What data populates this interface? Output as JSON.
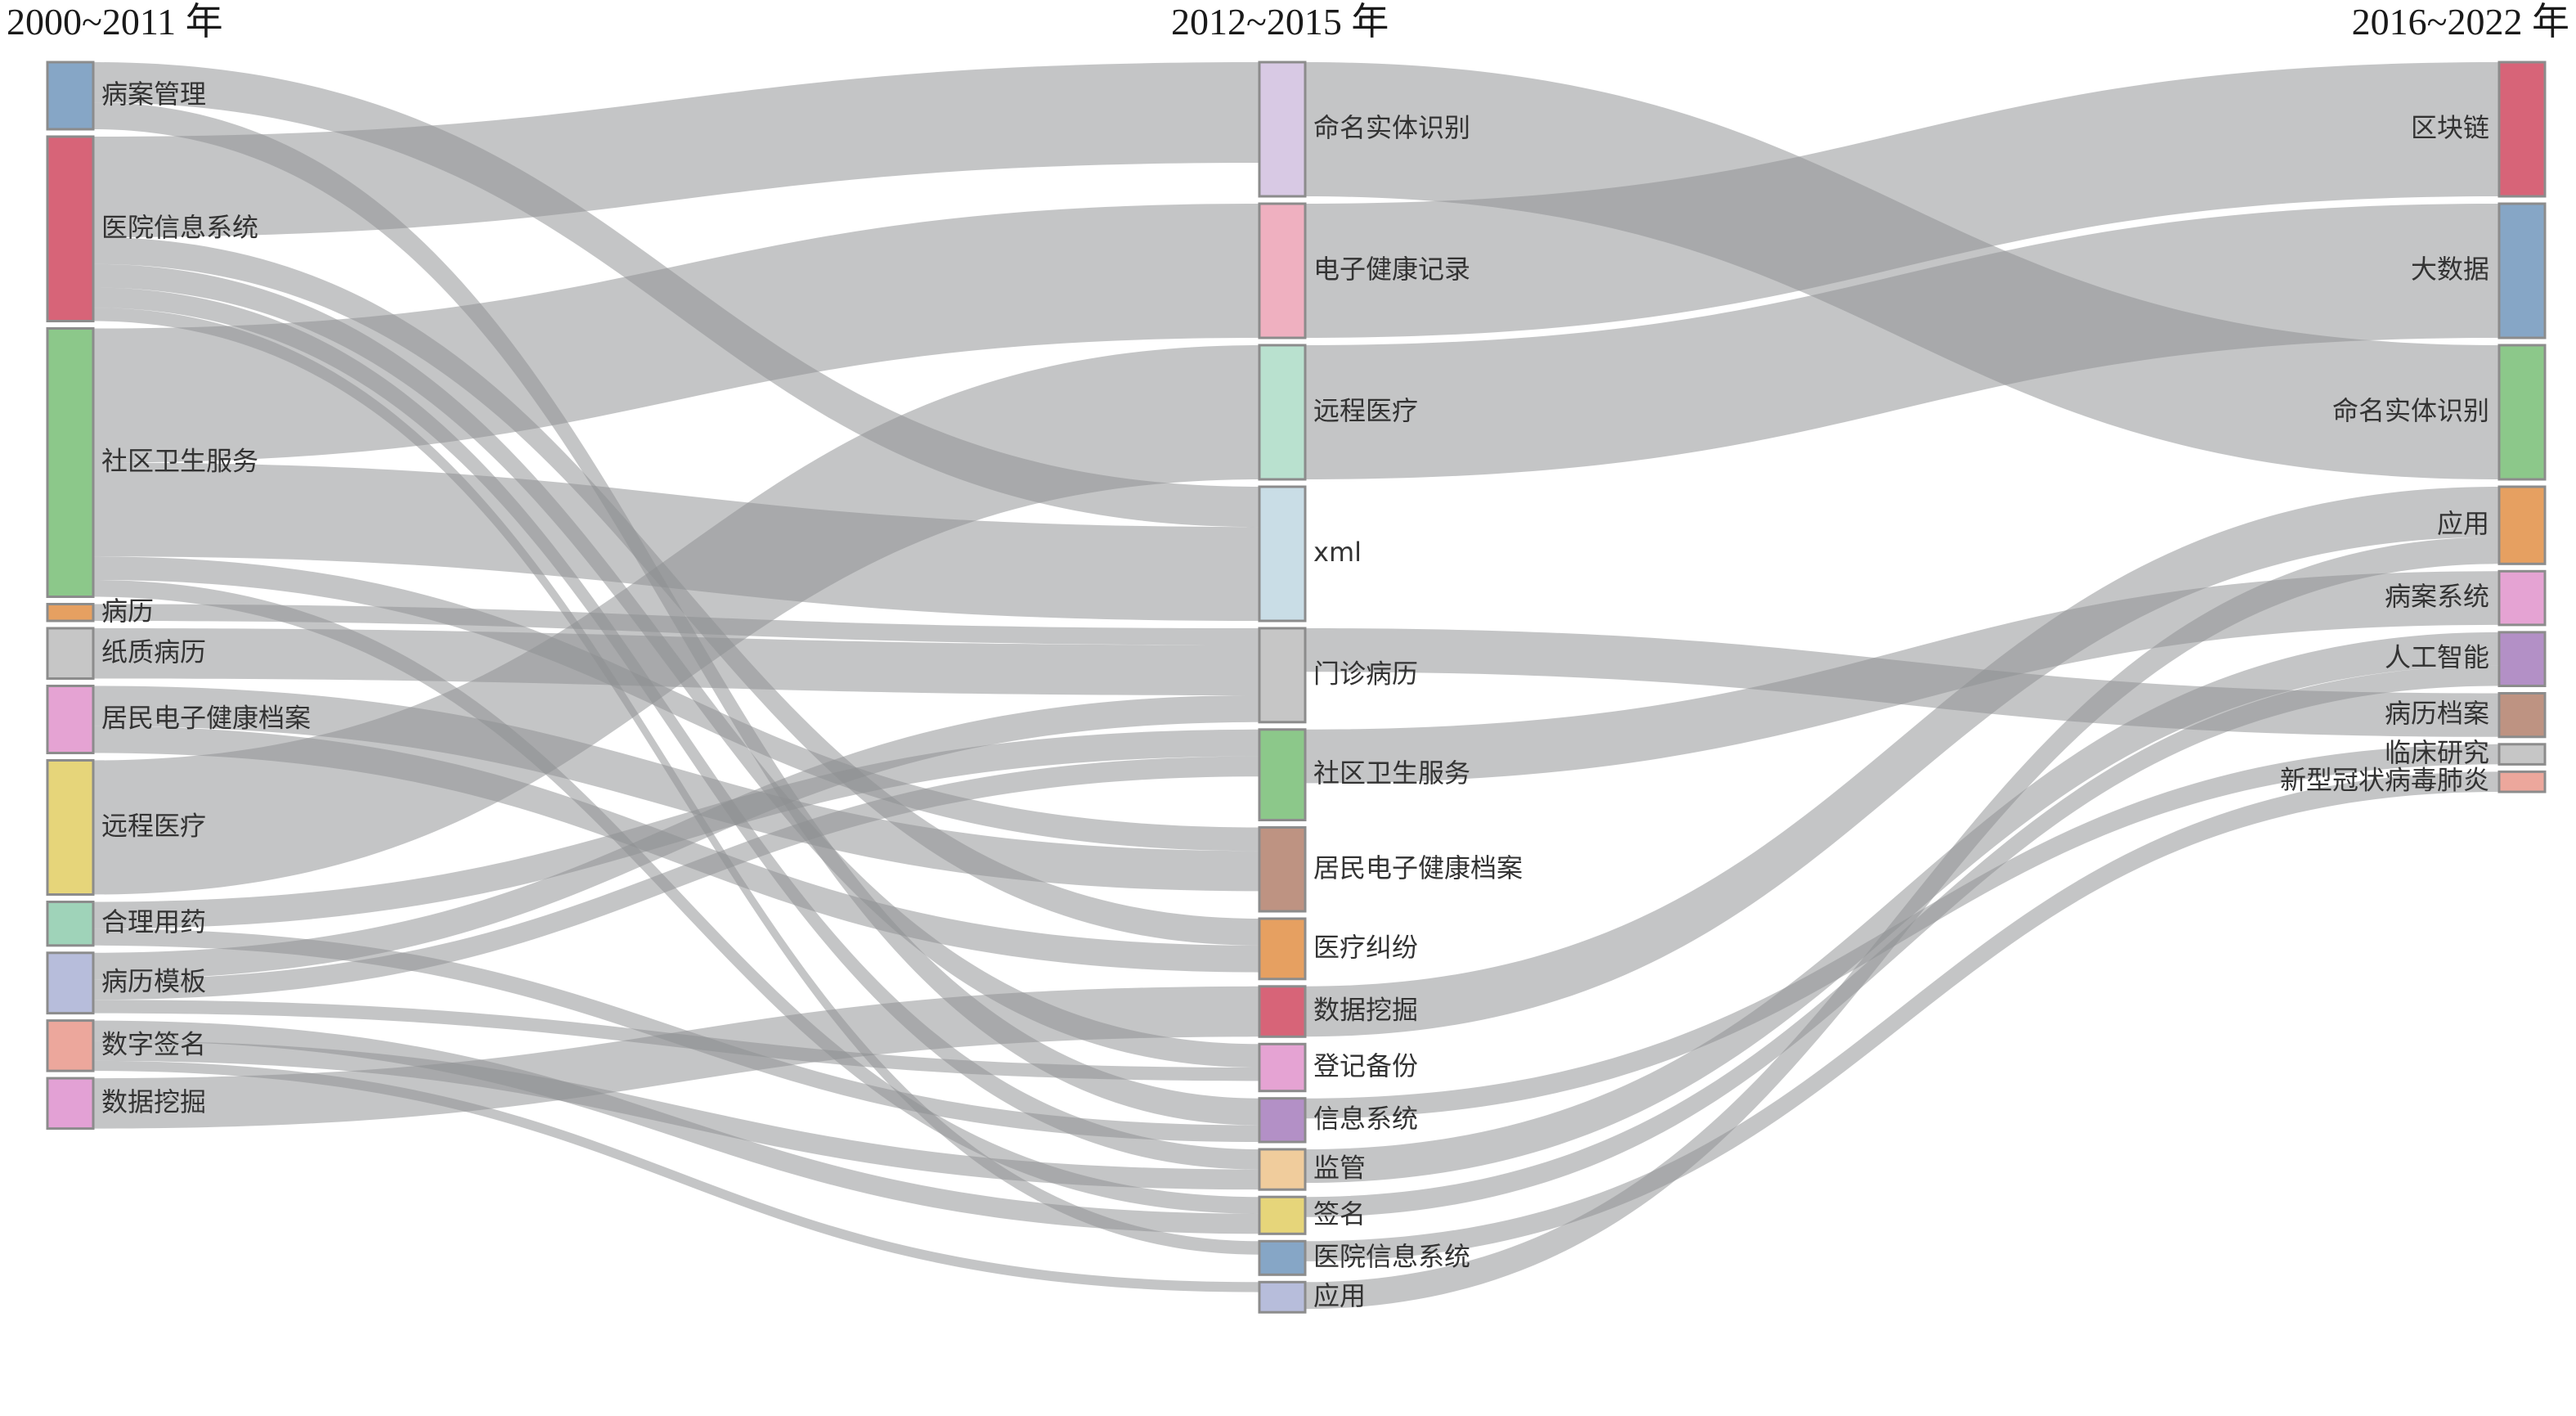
{
  "columns": [
    {
      "title": "2000~2011 年"
    },
    {
      "title": "2012~2015 年"
    },
    {
      "title": "2016~2022 年"
    }
  ],
  "chart_data": {
    "type": "sankey",
    "nodes": [
      {
        "id": "A1",
        "col": 0,
        "label": "病案管理",
        "value": 20,
        "color": "#86a6c6"
      },
      {
        "id": "A2",
        "col": 0,
        "label": "医院信息系统",
        "value": 55,
        "color": "#d76478"
      },
      {
        "id": "A3",
        "col": 0,
        "label": "社区卫生服务",
        "value": 80,
        "color": "#8cc88a"
      },
      {
        "id": "A4",
        "col": 0,
        "label": "病历",
        "value": 5,
        "color": "#e6a061"
      },
      {
        "id": "A5",
        "col": 0,
        "label": "纸质病历",
        "value": 15,
        "color": "#c6c6c6"
      },
      {
        "id": "A6",
        "col": 0,
        "label": "居民电子健康档案",
        "value": 20,
        "color": "#e5a3d3"
      },
      {
        "id": "A7",
        "col": 0,
        "label": "远程医疗",
        "value": 40,
        "color": "#e6d57a"
      },
      {
        "id": "A8",
        "col": 0,
        "label": "合理用药",
        "value": 13,
        "color": "#9fd3b9"
      },
      {
        "id": "A9",
        "col": 0,
        "label": "病历模板",
        "value": 18,
        "color": "#b7bddb"
      },
      {
        "id": "A10",
        "col": 0,
        "label": "数字签名",
        "value": 15,
        "color": "#eca79c"
      },
      {
        "id": "A11",
        "col": 0,
        "label": "数据挖掘",
        "value": 15,
        "color": "#e3a1d5"
      },
      {
        "id": "B1",
        "col": 1,
        "label": "命名实体识别",
        "value": 40,
        "color": "#d8c9e4"
      },
      {
        "id": "B2",
        "col": 1,
        "label": "电子健康记录",
        "value": 40,
        "color": "#efb0c0"
      },
      {
        "id": "B3",
        "col": 1,
        "label": "远程医疗",
        "value": 40,
        "color": "#b9e1cf"
      },
      {
        "id": "B4",
        "col": 1,
        "label": "xml",
        "value": 40,
        "color": "#c9dde6"
      },
      {
        "id": "B5",
        "col": 1,
        "label": "门诊病历",
        "value": 28,
        "color": "#c6c6c6"
      },
      {
        "id": "B6",
        "col": 1,
        "label": "社区卫生服务",
        "value": 27,
        "color": "#8cc88a"
      },
      {
        "id": "B7",
        "col": 1,
        "label": "居民电子健康档案",
        "value": 25,
        "color": "#be9382"
      },
      {
        "id": "B8",
        "col": 1,
        "label": "医疗纠纷",
        "value": 18,
        "color": "#e6a061"
      },
      {
        "id": "B9",
        "col": 1,
        "label": "数据挖掘",
        "value": 15,
        "color": "#d76478"
      },
      {
        "id": "B10",
        "col": 1,
        "label": "登记备份",
        "value": 14,
        "color": "#e5a3d3"
      },
      {
        "id": "B11",
        "col": 1,
        "label": "信息系统",
        "value": 13,
        "color": "#b390c6"
      },
      {
        "id": "B12",
        "col": 1,
        "label": "监管",
        "value": 12,
        "color": "#f0cc9c"
      },
      {
        "id": "B13",
        "col": 1,
        "label": "签名",
        "value": 11,
        "color": "#e6d57a"
      },
      {
        "id": "B14",
        "col": 1,
        "label": "医院信息系统",
        "value": 10,
        "color": "#86a6c6"
      },
      {
        "id": "B15",
        "col": 1,
        "label": "应用",
        "value": 9,
        "color": "#b7bddb"
      },
      {
        "id": "C1",
        "col": 2,
        "label": "区块链",
        "value": 40,
        "color": "#d76478"
      },
      {
        "id": "C2",
        "col": 2,
        "label": "大数据",
        "value": 40,
        "color": "#86a6c6"
      },
      {
        "id": "C3",
        "col": 2,
        "label": "命名实体识别",
        "value": 40,
        "color": "#8cc88a"
      },
      {
        "id": "C4",
        "col": 2,
        "label": "应用",
        "value": 23,
        "color": "#e6a061"
      },
      {
        "id": "C5",
        "col": 2,
        "label": "病案系统",
        "value": 16,
        "color": "#e5a3d3"
      },
      {
        "id": "C6",
        "col": 2,
        "label": "人工智能",
        "value": 16,
        "color": "#b390c6"
      },
      {
        "id": "C7",
        "col": 2,
        "label": "病历档案",
        "value": 13,
        "color": "#be9382"
      },
      {
        "id": "C8",
        "col": 2,
        "label": "临床研究",
        "value": 6,
        "color": "#c6c6c6"
      },
      {
        "id": "C9",
        "col": 2,
        "label": "新型冠状病毒肺炎",
        "value": 6,
        "color": "#eca79c"
      }
    ],
    "links": [
      {
        "source": "A1",
        "target": "B4",
        "value": 12
      },
      {
        "source": "A1",
        "target": "B11",
        "value": 8
      },
      {
        "source": "A2",
        "target": "B1",
        "value": 30
      },
      {
        "source": "A2",
        "target": "B8",
        "value": 8
      },
      {
        "source": "A2",
        "target": "B10",
        "value": 7
      },
      {
        "source": "A2",
        "target": "B12",
        "value": 6
      },
      {
        "source": "A2",
        "target": "B14",
        "value": 4
      },
      {
        "source": "A3",
        "target": "B2",
        "value": 40
      },
      {
        "source": "A3",
        "target": "B4",
        "value": 28
      },
      {
        "source": "A3",
        "target": "B7",
        "value": 7
      },
      {
        "source": "A3",
        "target": "B13",
        "value": 5
      },
      {
        "source": "A4",
        "target": "B5",
        "value": 5
      },
      {
        "source": "A5",
        "target": "B5",
        "value": 15
      },
      {
        "source": "A6",
        "target": "B7",
        "value": 12
      },
      {
        "source": "A6",
        "target": "B8",
        "value": 8
      },
      {
        "source": "A7",
        "target": "B3",
        "value": 40
      },
      {
        "source": "A8",
        "target": "B6",
        "value": 8
      },
      {
        "source": "A8",
        "target": "B11",
        "value": 5
      },
      {
        "source": "A9",
        "target": "B5",
        "value": 8
      },
      {
        "source": "A9",
        "target": "B6",
        "value": 6
      },
      {
        "source": "A9",
        "target": "B10",
        "value": 4
      },
      {
        "source": "A10",
        "target": "B13",
        "value": 6
      },
      {
        "source": "A10",
        "target": "B12",
        "value": 6
      },
      {
        "source": "A10",
        "target": "B15",
        "value": 3
      },
      {
        "source": "A11",
        "target": "B9",
        "value": 15
      },
      {
        "source": "B1",
        "target": "C3",
        "value": 40
      },
      {
        "source": "B2",
        "target": "C1",
        "value": 40
      },
      {
        "source": "B3",
        "target": "C2",
        "value": 40
      },
      {
        "source": "B5",
        "target": "C7",
        "value": 13
      },
      {
        "source": "B6",
        "target": "C5",
        "value": 16
      },
      {
        "source": "B9",
        "target": "C4",
        "value": 15
      },
      {
        "source": "B12",
        "target": "C6",
        "value": 10
      },
      {
        "source": "B11",
        "target": "C8",
        "value": 6
      },
      {
        "source": "B14",
        "target": "C9",
        "value": 6
      },
      {
        "source": "B15",
        "target": "C4",
        "value": 8
      },
      {
        "source": "B13",
        "target": "C6",
        "value": 6
      }
    ]
  }
}
